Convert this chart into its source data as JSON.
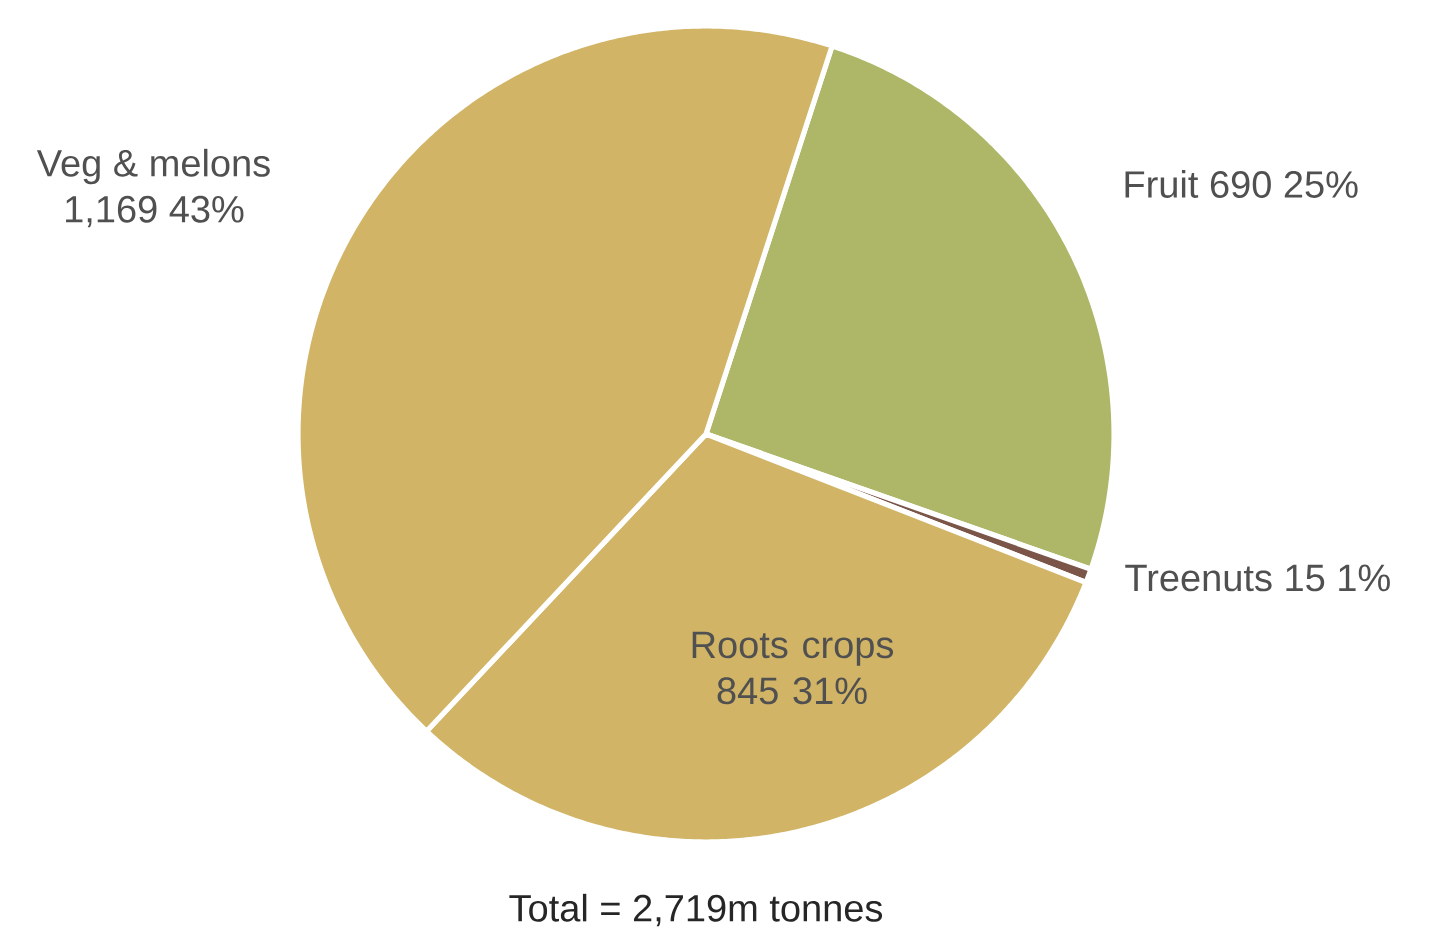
{
  "chart_data": {
    "type": "pie",
    "categories": [
      "Fruit",
      "Treenuts",
      "Roots crops",
      "Veg & melons"
    ],
    "values": [
      690,
      15,
      845,
      1169
    ],
    "colors": [
      "#aeb767",
      "#7a5548",
      "#d1b466",
      "#d1b466"
    ],
    "value_labels": [
      "690 25%",
      "15 1%",
      "845 31%",
      "1,169 43%"
    ],
    "annotations": [
      "Total = 2,719m tonnes"
    ]
  }
}
